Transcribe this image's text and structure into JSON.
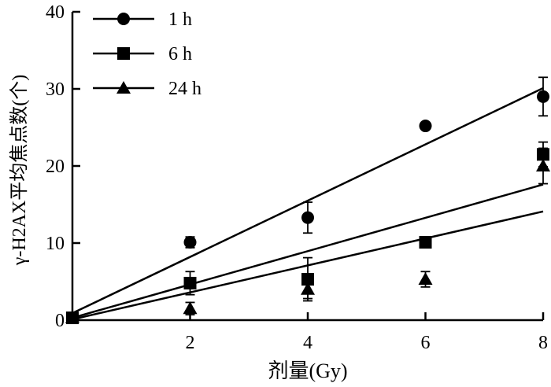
{
  "chart_data": {
    "type": "scatter",
    "title": "",
    "xlabel": "剂量(Gy)",
    "ylabel": "γ-H2AX平均焦点数(个)",
    "xlim": [
      0,
      8
    ],
    "ylim": [
      0,
      40
    ],
    "xticks": [
      2,
      4,
      6,
      8
    ],
    "yticks": [
      0,
      10,
      20,
      30,
      40
    ],
    "legend_position": "top-left",
    "series": [
      {
        "name": "1 h",
        "marker": "circle",
        "points": [
          {
            "x": 0,
            "y": 0.3,
            "err": 0
          },
          {
            "x": 2,
            "y": 10.1,
            "err": 0.7
          },
          {
            "x": 4,
            "y": 13.3,
            "err": 2.0
          },
          {
            "x": 6,
            "y": 25.2,
            "err": 0
          },
          {
            "x": 8,
            "y": 29.0,
            "err": 2.5
          }
        ],
        "fit": {
          "x": [
            0,
            8
          ],
          "y": [
            0.9,
            30.1
          ]
        }
      },
      {
        "name": "6 h",
        "marker": "square",
        "points": [
          {
            "x": 0,
            "y": 0.3,
            "err": 0
          },
          {
            "x": 2,
            "y": 4.8,
            "err": 1.5
          },
          {
            "x": 4,
            "y": 5.3,
            "err": 2.8
          },
          {
            "x": 6,
            "y": 10.1,
            "err": 0
          },
          {
            "x": 8,
            "y": 21.5,
            "err": 1.6
          }
        ],
        "fit": {
          "x": [
            0,
            8
          ],
          "y": [
            0.3,
            17.6
          ]
        }
      },
      {
        "name": "24 h",
        "marker": "triangle",
        "points": [
          {
            "x": 0,
            "y": 0.3,
            "err": 0
          },
          {
            "x": 2,
            "y": 1.5,
            "err": 0.8
          },
          {
            "x": 4,
            "y": 4.0,
            "err": 1.2
          },
          {
            "x": 6,
            "y": 5.3,
            "err": 1.0
          },
          {
            "x": 8,
            "y": 20.0,
            "err": 2.3
          }
        ],
        "fit": {
          "x": [
            0,
            8
          ],
          "y": [
            0.1,
            14.1
          ]
        }
      }
    ]
  }
}
